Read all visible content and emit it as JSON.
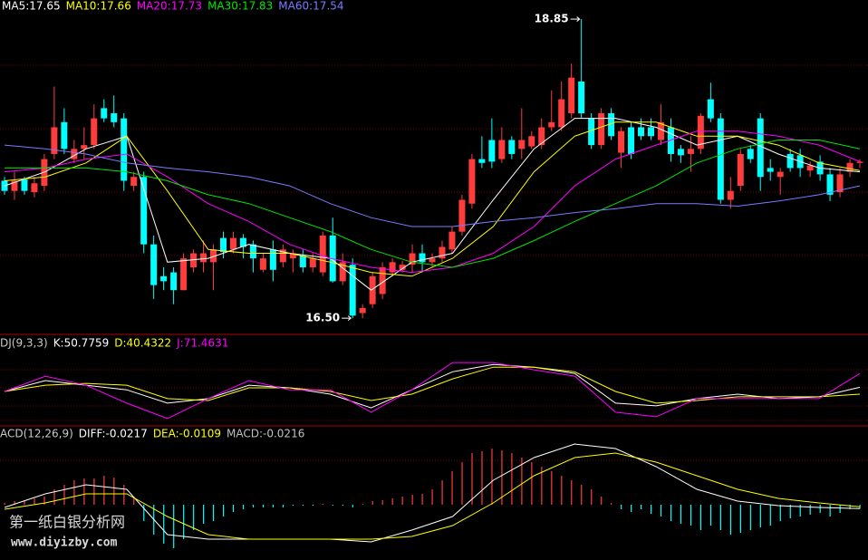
{
  "chart_data": {
    "type": "candlestick",
    "ylim": [
      16.38,
      19.0
    ],
    "up_color": "#ff3c3c",
    "down_color": "#00ffff",
    "high_label": "18.85",
    "low_label": "16.50",
    "ohlc": [
      [
        17.58,
        17.61,
        17.47,
        17.5
      ],
      [
        17.5,
        17.65,
        17.43,
        17.58
      ],
      [
        17.59,
        17.61,
        17.47,
        17.5
      ],
      [
        17.49,
        17.61,
        17.45,
        17.56
      ],
      [
        17.54,
        17.79,
        17.5,
        17.75
      ],
      [
        17.79,
        18.32,
        17.75,
        18.0
      ],
      [
        18.04,
        18.15,
        17.79,
        17.83
      ],
      [
        17.75,
        17.9,
        17.72,
        17.83
      ],
      [
        17.83,
        18.0,
        17.75,
        17.86
      ],
      [
        17.86,
        18.18,
        17.83,
        18.07
      ],
      [
        18.15,
        18.22,
        18.04,
        18.07
      ],
      [
        18.11,
        18.25,
        18.0,
        18.04
      ],
      [
        18.07,
        18.11,
        17.5,
        17.58
      ],
      [
        17.54,
        17.65,
        17.5,
        17.61
      ],
      [
        17.61,
        17.65,
        17.01,
        17.08
      ],
      [
        17.08,
        17.15,
        16.65,
        16.76
      ],
      [
        16.83,
        16.9,
        16.72,
        16.79
      ],
      [
        16.86,
        16.9,
        16.61,
        16.72
      ],
      [
        16.72,
        17.01,
        16.72,
        16.97
      ],
      [
        16.9,
        17.04,
        16.86,
        17.01
      ],
      [
        16.94,
        17.11,
        16.86,
        17.01
      ],
      [
        16.94,
        17.08,
        16.72,
        17.04
      ],
      [
        17.13,
        17.18,
        16.97,
        17.02
      ],
      [
        17.04,
        17.18,
        17.01,
        17.13
      ],
      [
        17.13,
        17.16,
        16.97,
        17.06
      ],
      [
        17.08,
        17.11,
        16.86,
        16.97
      ],
      [
        16.88,
        17.01,
        16.86,
        16.97
      ],
      [
        17.04,
        17.11,
        16.79,
        16.88
      ],
      [
        16.94,
        17.08,
        16.9,
        17.04
      ],
      [
        16.97,
        17.04,
        16.86,
        17.01
      ],
      [
        16.99,
        17.04,
        16.86,
        16.9
      ],
      [
        16.9,
        17.01,
        16.86,
        16.97
      ],
      [
        16.86,
        17.18,
        16.83,
        17.15
      ],
      [
        17.15,
        17.29,
        16.78,
        16.79
      ],
      [
        16.79,
        17.01,
        16.76,
        16.94
      ],
      [
        16.92,
        16.97,
        16.5,
        16.52
      ],
      [
        16.54,
        16.61,
        16.5,
        16.58
      ],
      [
        16.61,
        16.86,
        16.58,
        16.83
      ],
      [
        16.69,
        16.94,
        16.65,
        16.9
      ],
      [
        16.86,
        16.97,
        16.83,
        16.94
      ],
      [
        16.88,
        16.95,
        16.86,
        16.92
      ],
      [
        16.92,
        17.08,
        16.86,
        17.01
      ],
      [
        17.01,
        17.08,
        16.86,
        16.94
      ],
      [
        16.94,
        17.01,
        16.9,
        16.97
      ],
      [
        16.97,
        17.11,
        16.94,
        17.06
      ],
      [
        17.04,
        17.22,
        17.01,
        17.18
      ],
      [
        17.18,
        17.47,
        17.15,
        17.43
      ],
      [
        17.4,
        17.79,
        17.36,
        17.75
      ],
      [
        17.75,
        17.93,
        17.68,
        17.72
      ],
      [
        17.9,
        18.07,
        17.68,
        17.73
      ],
      [
        17.75,
        18.0,
        17.72,
        17.9
      ],
      [
        17.9,
        17.93,
        17.75,
        17.79
      ],
      [
        17.83,
        18.15,
        17.75,
        17.9
      ],
      [
        17.85,
        17.97,
        17.83,
        17.93
      ],
      [
        17.86,
        18.07,
        17.83,
        18.0
      ],
      [
        18.0,
        18.29,
        17.97,
        18.04
      ],
      [
        18.0,
        18.36,
        17.97,
        18.22
      ],
      [
        18.11,
        18.5,
        18.07,
        18.39
      ],
      [
        18.36,
        18.85,
        18.07,
        18.11
      ],
      [
        18.07,
        18.11,
        17.83,
        17.86
      ],
      [
        17.86,
        18.15,
        17.83,
        18.11
      ],
      [
        18.11,
        18.15,
        17.9,
        17.93
      ],
      [
        17.8,
        18.0,
        17.68,
        17.97
      ],
      [
        18.0,
        18.04,
        17.75,
        17.79
      ],
      [
        18.0,
        18.07,
        17.9,
        17.93
      ],
      [
        18.0,
        18.07,
        17.9,
        17.93
      ],
      [
        17.9,
        18.18,
        17.86,
        18.04
      ],
      [
        18.0,
        18.07,
        17.73,
        17.79
      ],
      [
        17.83,
        17.86,
        17.72,
        17.78
      ],
      [
        17.79,
        17.93,
        17.65,
        17.83
      ],
      [
        17.83,
        18.11,
        17.79,
        18.09
      ],
      [
        18.22,
        18.35,
        18.04,
        18.07
      ],
      [
        18.07,
        18.11,
        17.4,
        17.43
      ],
      [
        17.43,
        17.61,
        17.36,
        17.5
      ],
      [
        17.54,
        17.83,
        17.5,
        17.79
      ],
      [
        17.83,
        17.86,
        17.72,
        17.75
      ],
      [
        18.07,
        18.11,
        17.5,
        17.61
      ],
      [
        17.68,
        17.75,
        17.58,
        17.65
      ],
      [
        17.61,
        17.68,
        17.47,
        17.65
      ],
      [
        17.79,
        17.83,
        17.65,
        17.68
      ],
      [
        17.78,
        17.83,
        17.61,
        17.68
      ],
      [
        17.66,
        17.73,
        17.61,
        17.7
      ],
      [
        17.73,
        17.78,
        17.58,
        17.63
      ],
      [
        17.63,
        17.68,
        17.42,
        17.47
      ],
      [
        17.49,
        17.68,
        17.45,
        17.63
      ],
      [
        17.65,
        17.75,
        17.61,
        17.72
      ],
      [
        17.72,
        17.75,
        17.68,
        17.73
      ]
    ],
    "series": [
      {
        "name": "MA5:17.65",
        "color": "#ffffff",
        "values": [
          17.54,
          17.65,
          17.83,
          17.93,
          16.94,
          16.97,
          17.08,
          17.01,
          16.97,
          16.72,
          16.94,
          17.01,
          17.43,
          17.83,
          18.07,
          18.07,
          18.0,
          17.86,
          17.93,
          17.79,
          17.68,
          17.65
        ]
      },
      {
        "name": "MA10:17.66",
        "color": "#ffff00",
        "values": [
          17.58,
          17.61,
          17.72,
          17.93,
          17.5,
          17.04,
          17.01,
          17.01,
          16.94,
          16.86,
          16.83,
          16.97,
          17.22,
          17.65,
          17.93,
          18.04,
          18.04,
          17.93,
          17.93,
          17.86,
          17.72,
          17.66
        ]
      },
      {
        "name": "MA20:17.73",
        "color": "#ff00ff",
        "values": [
          17.65,
          17.68,
          17.75,
          17.79,
          17.61,
          17.4,
          17.26,
          17.08,
          16.97,
          16.9,
          16.86,
          16.9,
          17.01,
          17.22,
          17.54,
          17.75,
          17.86,
          17.97,
          17.97,
          17.93,
          17.86,
          17.73
        ]
      },
      {
        "name": "MA30:17.83",
        "color": "#00e600",
        "values": [
          17.68,
          17.68,
          17.68,
          17.65,
          17.58,
          17.47,
          17.4,
          17.29,
          17.18,
          17.04,
          16.94,
          16.9,
          16.97,
          17.11,
          17.26,
          17.4,
          17.54,
          17.72,
          17.83,
          17.9,
          17.9,
          17.83
        ]
      },
      {
        "name": "MA60:17.54",
        "color": "#7a7aff",
        "values": [
          17.86,
          17.83,
          17.79,
          17.72,
          17.68,
          17.65,
          17.61,
          17.54,
          17.4,
          17.29,
          17.22,
          17.22,
          17.26,
          17.29,
          17.33,
          17.36,
          17.4,
          17.4,
          17.38,
          17.42,
          17.47,
          17.54
        ]
      }
    ],
    "kdj": {
      "title": "DJ(9,3,3)",
      "ylim": [
        -7,
        126
      ],
      "series": [
        {
          "name": "K:50.7759",
          "color": "#ffffff",
          "values": [
            44.6,
            60.8,
            54,
            47,
            27,
            33.8,
            54,
            50,
            40.5,
            20,
            47,
            74,
            85,
            81,
            71.6,
            27,
            23,
            33.8,
            40.5,
            33.8,
            36.5,
            50.7759
          ]
        },
        {
          "name": "D:40.4322",
          "color": "#ffff00",
          "values": [
            44.6,
            54,
            56.7,
            54,
            33.8,
            31,
            50,
            50,
            44.6,
            31,
            40.5,
            63.5,
            81,
            81,
            74,
            44.6,
            27,
            31,
            36.5,
            36.5,
            36.5,
            40.4322
          ]
        },
        {
          "name": "J:71.4631",
          "color": "#ff00ff",
          "values": [
            44.6,
            67.5,
            54,
            27,
            4,
            33.8,
            60.8,
            47,
            47,
            13.5,
            47,
            87.8,
            87.8,
            77,
            67.5,
            13.5,
            6.75,
            33.8,
            33.8,
            33.8,
            33.8,
            71.4631
          ]
        }
      ]
    },
    "macd": {
      "title": "ACD(12,26,9)",
      "ylim": [
        -0.305,
        0.395
      ],
      "series": [
        {
          "name": "DIFF:-0.0217",
          "color": "#ffffff",
          "values": [
            -0.015,
            0.06,
            0.11,
            0.085,
            -0.165,
            -0.19,
            -0.19,
            -0.19,
            -0.19,
            -0.205,
            -0.14,
            -0.065,
            0.135,
            0.26,
            0.335,
            0.31,
            0.21,
            0.085,
            0.02,
            -0.005,
            -0.015,
            -0.0217
          ]
        },
        {
          "name": "DEA:-0.0109",
          "color": "#ffff00",
          "values": [
            -0.025,
            0.01,
            0.06,
            0.06,
            -0.065,
            -0.165,
            -0.19,
            -0.19,
            -0.19,
            -0.19,
            -0.175,
            -0.115,
            0.01,
            0.16,
            0.26,
            0.285,
            0.235,
            0.16,
            0.085,
            0.035,
            0.01,
            -0.0109
          ]
        }
      ],
      "histogram": {
        "name": "MACD:-0.0216",
        "color": "#c0c0c0",
        "values": [
          0.01,
          0.02,
          0.025,
          0.035,
          0.045,
          0.085,
          0.11,
          0.135,
          0.145,
          0.145,
          0.16,
          0.15,
          0.11,
          0.045,
          -0.09,
          -0.165,
          -0.215,
          -0.24,
          -0.19,
          -0.14,
          -0.105,
          -0.09,
          -0.065,
          -0.04,
          -0.025,
          -0.015,
          -0.015,
          -0.015,
          -0.015,
          -0.005,
          -0.005,
          -0.005,
          0.005,
          -0.005,
          -0.005,
          -0.015,
          0.005,
          0.02,
          0.025,
          0.035,
          0.045,
          0.055,
          0.06,
          0.085,
          0.135,
          0.185,
          0.235,
          0.285,
          0.295,
          0.31,
          0.3,
          0.285,
          0.26,
          0.235,
          0.21,
          0.185,
          0.16,
          0.135,
          0.11,
          0.085,
          0.045,
          0.01,
          -0.025,
          -0.04,
          -0.025,
          -0.05,
          -0.065,
          -0.09,
          -0.105,
          -0.115,
          -0.14,
          -0.115,
          -0.14,
          -0.165,
          -0.155,
          -0.14,
          -0.125,
          -0.115,
          -0.09,
          -0.075,
          -0.065,
          -0.055,
          -0.045,
          -0.065,
          -0.045,
          -0.025,
          -0.0216
        ]
      }
    }
  },
  "watermark": {
    "title": "第一纸白银分析网",
    "url": "www.diyizby.com"
  }
}
